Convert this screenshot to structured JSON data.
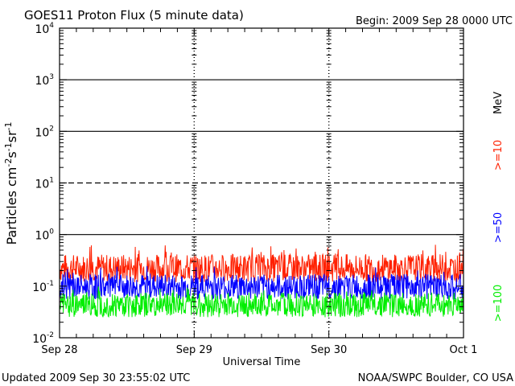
{
  "header": {
    "title": "GOES11 Proton Flux (5 minute data)",
    "begin": "Begin: 2009 Sep 28 0000 UTC"
  },
  "footer": {
    "updated": "Updated 2009 Sep 30 23:55:02 UTC",
    "source": "NOAA/SWPC Boulder, CO USA"
  },
  "chart_data": {
    "type": "line",
    "title": "GOES11 Proton Flux (5 minute data)",
    "xlabel": "Universal Time",
    "ylabel_html": "Particles cm<tspan baseline-shift=\"super\" font-size=\"11\">-2</tspan>s<tspan baseline-shift=\"super\" font-size=\"11\">-1</tspan>sr<tspan baseline-shift=\"super\" font-size=\"11\">-1</tspan>",
    "ylabel": "Particles cm-2s-1sr-1",
    "y_scale": "log",
    "ylim": [
      0.01,
      10000
    ],
    "y_ticks": [
      {
        "base": "10",
        "exp": "4",
        "value": 10000
      },
      {
        "base": "10",
        "exp": "3",
        "value": 1000
      },
      {
        "base": "10",
        "exp": "2",
        "value": 100
      },
      {
        "base": "10",
        "exp": "1",
        "value": 10
      },
      {
        "base": "10",
        "exp": "0",
        "value": 1
      },
      {
        "base": "10",
        "exp": "-1",
        "value": 0.1
      },
      {
        "base": "10",
        "exp": "-2",
        "value": 0.01
      }
    ],
    "x_range_days": [
      0,
      3
    ],
    "x_ticks": [
      {
        "label": "Sep 28",
        "day": 0
      },
      {
        "label": "Sep 29",
        "day": 1
      },
      {
        "label": "Sep 30",
        "day": 2
      },
      {
        "label": "Oct 1",
        "day": 3
      }
    ],
    "threshold_lines": [
      {
        "value": 1000,
        "style": "solid"
      },
      {
        "value": 100,
        "style": "solid"
      },
      {
        "value": 10,
        "style": "dashed"
      },
      {
        "value": 1,
        "style": "solid"
      }
    ],
    "energy_unit": "MeV",
    "series": [
      {
        "name": ">=10",
        "color": "#ff2000",
        "typical_low": 0.12,
        "typical_high": 0.42,
        "peak": 0.7
      },
      {
        "name": ">=50",
        "color": "#0000ff",
        "typical_low": 0.055,
        "typical_high": 0.17,
        "peak": 0.25
      },
      {
        "name": ">=100",
        "color": "#00ee00",
        "typical_low": 0.025,
        "typical_high": 0.075,
        "peak": 0.1
      }
    ]
  }
}
